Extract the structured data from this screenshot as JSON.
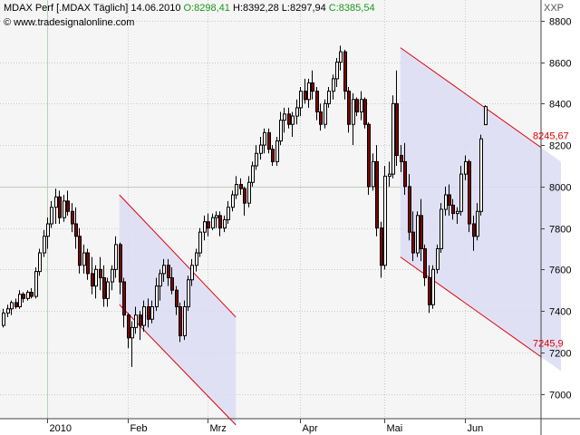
{
  "header": {
    "symbol_line": "MDAX Perf [.MDAX  Täglich]",
    "date": "14.06.2010",
    "open": "O:8298,41",
    "high": "H:8392,28",
    "low": "L:8297,94",
    "close": "C:8385,54",
    "website": "© www.tradesignalonline.com",
    "currency": "XXP"
  },
  "colors": {
    "up": "#ffffff",
    "down": "#800000",
    "channel_fill": "#dcdcf4",
    "channel_line": "#e00000",
    "grid": "#b7d0b7",
    "plot_bg": "#f5f5f5",
    "axis_bg": "#eeeeee",
    "label_red": "#e00000",
    "ohlc_green": "#1a9a1a"
  },
  "chart_data": {
    "type": "candlestick",
    "ylim": [
      6880,
      8900
    ],
    "yticks": [
      7000,
      7200,
      7400,
      7600,
      7800,
      8000,
      8200,
      8400,
      8600,
      8800
    ],
    "month_labels": [
      {
        "label": "2010",
        "bar": 0
      },
      {
        "label": "Feb",
        "bar": 20
      },
      {
        "label": "Mrz",
        "bar": 40
      },
      {
        "label": "Apr",
        "bar": 63
      },
      {
        "label": "Mai",
        "bar": 84
      },
      {
        "label": "Jun",
        "bar": 104
      }
    ],
    "reference_lines": {
      "y": 8000,
      "bar": 0
    },
    "candles_start_offset": -12,
    "candles": [
      [
        7350,
        7380,
        7300,
        7330
      ],
      [
        7330,
        7410,
        7320,
        7390
      ],
      [
        7390,
        7430,
        7370,
        7410
      ],
      [
        7410,
        7450,
        7380,
        7440
      ],
      [
        7440,
        7460,
        7410,
        7420
      ],
      [
        7420,
        7500,
        7410,
        7480
      ],
      [
        7480,
        7490,
        7440,
        7460
      ],
      [
        7460,
        7500,
        7450,
        7490
      ],
      [
        7490,
        7510,
        7460,
        7470
      ],
      [
        7470,
        7610,
        7460,
        7590
      ],
      [
        7590,
        7700,
        7570,
        7680
      ],
      [
        7680,
        7790,
        7660,
        7760
      ],
      [
        7760,
        7850,
        7700,
        7820
      ],
      [
        7820,
        7930,
        7800,
        7900
      ],
      [
        7900,
        7990,
        7820,
        7950
      ],
      [
        7950,
        7980,
        7820,
        7850
      ],
      [
        7850,
        7960,
        7830,
        7930
      ],
      [
        7930,
        7980,
        7860,
        7880
      ],
      [
        7880,
        7920,
        7780,
        7820
      ],
      [
        7820,
        7900,
        7700,
        7760
      ],
      [
        7760,
        7800,
        7580,
        7620
      ],
      [
        7620,
        7720,
        7580,
        7680
      ],
      [
        7680,
        7700,
        7550,
        7580
      ],
      [
        7580,
        7660,
        7480,
        7520
      ],
      [
        7520,
        7620,
        7460,
        7600
      ],
      [
        7600,
        7660,
        7500,
        7560
      ],
      [
        7560,
        7620,
        7420,
        7460
      ],
      [
        7460,
        7560,
        7420,
        7540
      ],
      [
        7540,
        7620,
        7500,
        7600
      ],
      [
        7600,
        7760,
        7560,
        7720
      ],
      [
        7720,
        7730,
        7480,
        7540
      ],
      [
        7540,
        7560,
        7320,
        7380
      ],
      [
        7380,
        7390,
        7220,
        7270
      ],
      [
        7270,
        7350,
        7130,
        7320
      ],
      [
        7320,
        7420,
        7290,
        7380
      ],
      [
        7380,
        7400,
        7260,
        7330
      ],
      [
        7330,
        7450,
        7300,
        7420
      ],
      [
        7420,
        7460,
        7320,
        7360
      ],
      [
        7360,
        7450,
        7340,
        7420
      ],
      [
        7420,
        7560,
        7400,
        7520
      ],
      [
        7520,
        7600,
        7450,
        7580
      ],
      [
        7580,
        7650,
        7540,
        7620
      ],
      [
        7620,
        7650,
        7520,
        7560
      ],
      [
        7560,
        7610,
        7480,
        7500
      ],
      [
        7500,
        7520,
        7380,
        7420
      ],
      [
        7420,
        7440,
        7250,
        7280
      ],
      [
        7280,
        7450,
        7260,
        7420
      ],
      [
        7420,
        7570,
        7400,
        7550
      ],
      [
        7550,
        7650,
        7520,
        7620
      ],
      [
        7620,
        7700,
        7590,
        7680
      ],
      [
        7680,
        7800,
        7660,
        7780
      ],
      [
        7780,
        7860,
        7740,
        7830
      ],
      [
        7830,
        7870,
        7760,
        7800
      ],
      [
        7800,
        7870,
        7790,
        7850
      ],
      [
        7850,
        7880,
        7800,
        7860
      ],
      [
        7860,
        7880,
        7760,
        7800
      ],
      [
        7800,
        7860,
        7780,
        7840
      ],
      [
        7840,
        7930,
        7820,
        7900
      ],
      [
        7900,
        7980,
        7880,
        7960
      ],
      [
        7960,
        8050,
        7940,
        8010
      ],
      [
        8010,
        8040,
        7960,
        7990
      ],
      [
        7990,
        8000,
        7860,
        7920
      ],
      [
        7920,
        8050,
        7900,
        8020
      ],
      [
        8020,
        8120,
        8000,
        8100
      ],
      [
        8100,
        8200,
        8080,
        8160
      ],
      [
        8160,
        8240,
        8130,
        8200
      ],
      [
        8200,
        8280,
        8160,
        8260
      ],
      [
        8260,
        8280,
        8160,
        8180
      ],
      [
        8180,
        8200,
        8100,
        8120
      ],
      [
        8120,
        8240,
        8100,
        8220
      ],
      [
        8220,
        8360,
        8200,
        8320
      ],
      [
        8320,
        8380,
        8260,
        8350
      ],
      [
        8350,
        8380,
        8280,
        8300
      ],
      [
        8300,
        8360,
        8240,
        8340
      ],
      [
        8340,
        8420,
        8300,
        8380
      ],
      [
        8380,
        8480,
        8340,
        8460
      ],
      [
        8460,
        8520,
        8400,
        8420
      ],
      [
        8420,
        8520,
        8380,
        8500
      ],
      [
        8500,
        8560,
        8420,
        8460
      ],
      [
        8460,
        8480,
        8320,
        8360
      ],
      [
        8360,
        8400,
        8270,
        8300
      ],
      [
        8300,
        8420,
        8280,
        8400
      ],
      [
        8400,
        8480,
        8380,
        8460
      ],
      [
        8460,
        8540,
        8420,
        8520
      ],
      [
        8520,
        8620,
        8480,
        8600
      ],
      [
        8600,
        8680,
        8560,
        8650
      ],
      [
        8650,
        8660,
        8420,
        8460
      ],
      [
        8460,
        8480,
        8260,
        8300
      ],
      [
        8300,
        8450,
        8200,
        8420
      ],
      [
        8420,
        8430,
        8340,
        8360
      ],
      [
        8360,
        8460,
        8320,
        8420
      ],
      [
        8420,
        8430,
        8280,
        8300
      ],
      [
        8300,
        8310,
        7960,
        8000
      ],
      [
        8000,
        8160,
        7980,
        8120
      ],
      [
        8120,
        8200,
        7760,
        7800
      ],
      [
        7800,
        7830,
        7560,
        7620
      ],
      [
        7620,
        8100,
        7600,
        8050
      ],
      [
        8050,
        8120,
        8000,
        8060
      ],
      [
        8060,
        8440,
        8040,
        8400
      ],
      [
        8400,
        8560,
        8100,
        8150
      ],
      [
        8150,
        8200,
        8070,
        8120
      ],
      [
        8120,
        8210,
        7960,
        8000
      ],
      [
        8000,
        8060,
        7740,
        7780
      ],
      [
        7780,
        7880,
        7640,
        7680
      ],
      [
        7680,
        7880,
        7660,
        7860
      ],
      [
        7860,
        7940,
        7640,
        7700
      ],
      [
        7700,
        7720,
        7520,
        7560
      ],
      [
        7560,
        7620,
        7390,
        7430
      ],
      [
        7430,
        7620,
        7410,
        7600
      ],
      [
        7600,
        7720,
        7580,
        7700
      ],
      [
        7700,
        7920,
        7680,
        7890
      ],
      [
        7890,
        8000,
        7860,
        7960
      ],
      [
        7960,
        8010,
        7860,
        7910
      ],
      [
        7910,
        7940,
        7840,
        7870
      ],
      [
        7870,
        7900,
        7820,
        7880
      ],
      [
        7880,
        8100,
        7860,
        8060
      ],
      [
        8060,
        8150,
        8030,
        8120
      ],
      [
        8120,
        8130,
        7780,
        7820
      ],
      [
        7820,
        7860,
        7690,
        7760
      ],
      [
        7760,
        7920,
        7740,
        7880
      ],
      [
        7880,
        8250,
        7860,
        8230
      ],
      [
        8298.41,
        8392.28,
        8297.94,
        8385.54
      ]
    ],
    "channels": [
      {
        "x0": 18,
        "x1": 47,
        "upper": [
          7960,
          7370
        ],
        "lower": [
          7430,
          6850
        ]
      },
      {
        "x0": 88,
        "x1": 128,
        "upper": [
          8670,
          8120
        ],
        "lower": [
          7660,
          7110
        ]
      }
    ],
    "annotations": [
      {
        "text": "8245,67",
        "bar": 121,
        "value": 8245.67
      },
      {
        "text": "7245,9",
        "bar": 121,
        "value": 7245.9
      }
    ]
  }
}
